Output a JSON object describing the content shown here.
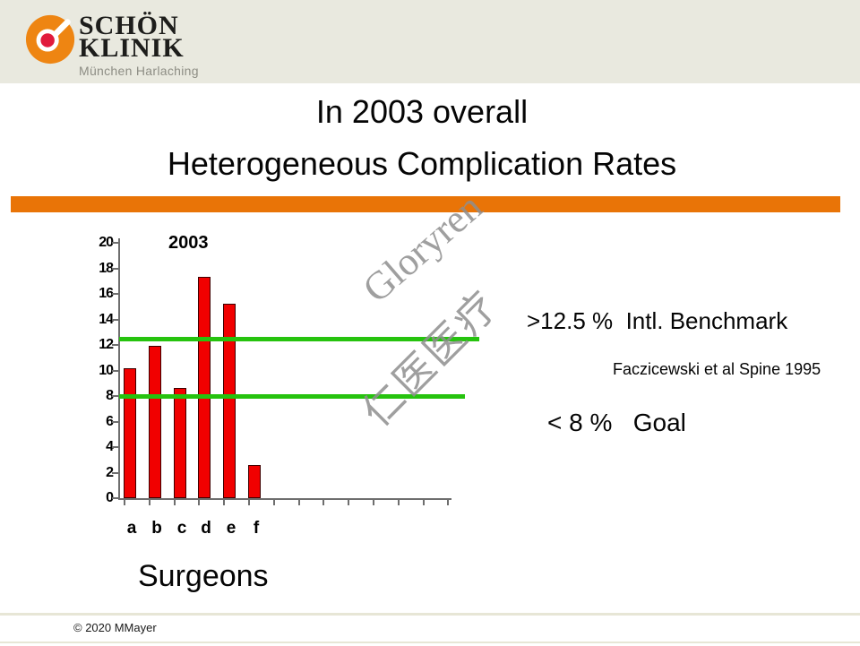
{
  "logo": {
    "line1": "SCHÖN",
    "line2": "KLINIK",
    "subtitle": "München Harlaching"
  },
  "title_line1": "In 2003 overall",
  "title_line2": "Heterogeneous Complication Rates",
  "annotations": {
    "benchmark": ">12.5 %  Intl. Benchmark",
    "citation": "Faczicewski et al Spine 1995",
    "goal": "< 8 %   Goal"
  },
  "xlabel": "Surgeons",
  "footer": "© 2020 MMayer",
  "watermark": {
    "line1": "Gloryren",
    "line2": "仁医医疗"
  },
  "colors": {
    "header_band": "#e9e9df",
    "divider_orange": "#e97407",
    "bar_red": "#f10000",
    "reference_green": "#26c30e",
    "logo_orange": "#ee8512",
    "logo_red_dot": "#e11a3c",
    "watermark_gray": "#8f8f8f"
  },
  "chart_data": {
    "type": "bar",
    "title": "2003",
    "categories": [
      "a",
      "b",
      "c",
      "d",
      "e",
      "f"
    ],
    "values": [
      10.2,
      11.9,
      8.6,
      17.3,
      15.2,
      2.6
    ],
    "xlabel": "Surgeons",
    "ylabel": "",
    "ylim": [
      0,
      20
    ],
    "yticks": [
      0,
      2,
      4,
      6,
      8,
      10,
      12,
      14,
      16,
      18,
      20
    ],
    "bar_color": "#f10000",
    "grid": false,
    "legend": "none",
    "reference_lines": [
      {
        "value": 12.5,
        "meaning": "Intl. Benchmark",
        "color": "#26c30e"
      },
      {
        "value": 8,
        "meaning": "Goal",
        "color": "#26c30e"
      }
    ]
  }
}
